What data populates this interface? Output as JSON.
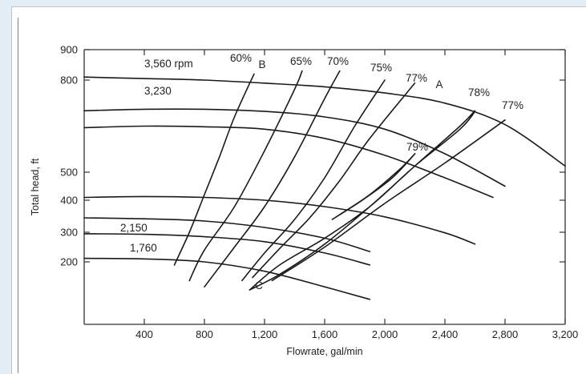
{
  "chart_data": {
    "type": "line",
    "xlabel": "Flowrate, gal/min",
    "ylabel": "Total head, ft",
    "xlim": [
      0,
      3200
    ],
    "ylim": [
      100,
      900
    ],
    "x_ticks": [
      400,
      800,
      1200,
      1600,
      2000,
      2400,
      2800,
      3200
    ],
    "x_tick_labels": [
      "400",
      "800",
      "1,200",
      "1,600",
      "2,000",
      "2,400",
      "2,800",
      "3,200"
    ],
    "y_ticks": [
      200,
      300,
      400,
      500,
      800,
      900
    ],
    "y_tick_labels": [
      "200",
      "300",
      "400",
      "500",
      "800",
      "900"
    ],
    "grid": false,
    "series": [
      {
        "name": "3,560 rpm",
        "group": "speed",
        "x": [
          0,
          400,
          800,
          1200,
          1600,
          2000,
          2400,
          2800,
          3200
        ],
        "y": [
          810,
          805,
          800,
          790,
          778,
          758,
          725,
          655,
          520
        ]
      },
      {
        "name": "3,230",
        "group": "speed",
        "x": [
          0,
          400,
          800,
          1200,
          1600,
          2000,
          2400,
          2800
        ],
        "y": [
          700,
          705,
          705,
          698,
          680,
          640,
          560,
          450
        ]
      },
      {
        "name": "",
        "group": "speed",
        "x": [
          0,
          400,
          800,
          1200,
          1600,
          2000,
          2400,
          2720
        ],
        "y": [
          645,
          650,
          648,
          640,
          610,
          555,
          480,
          410
        ]
      },
      {
        "name": "",
        "group": "speed",
        "x": [
          0,
          400,
          800,
          1200,
          1600,
          2000,
          2400,
          2600
        ],
        "y": [
          410,
          413,
          410,
          400,
          380,
          348,
          298,
          260
        ]
      },
      {
        "name": "2,150",
        "group": "speed",
        "x": [
          0,
          400,
          800,
          1200,
          1600,
          1900
        ],
        "y": [
          345,
          342,
          335,
          315,
          280,
          235
        ]
      },
      {
        "name": "1,760",
        "group": "speed",
        "x": [
          0,
          400,
          800,
          1200,
          1600,
          1900
        ],
        "y": [
          295,
          293,
          285,
          268,
          230,
          195
        ]
      },
      {
        "name": "",
        "group": "speed",
        "x": [
          0,
          400,
          800,
          1200,
          1600,
          1900
        ],
        "y": [
          212,
          210,
          200,
          185,
          160,
          140
        ]
      },
      {
        "name": "60%",
        "group": "efficiency",
        "x": [
          600,
          700,
          800,
          900,
          1000,
          1130
        ],
        "y": [
          195,
          300,
          420,
          550,
          680,
          820
        ]
      },
      {
        "name": "65%",
        "group": "efficiency",
        "x": [
          700,
          800,
          1000,
          1200,
          1400,
          1450
        ],
        "y": [
          170,
          240,
          380,
          570,
          770,
          830
        ]
      },
      {
        "name": "70%",
        "group": "efficiency",
        "x": [
          800,
          1000,
          1200,
          1400,
          1600,
          1700
        ],
        "y": [
          160,
          250,
          380,
          550,
          740,
          830
        ]
      },
      {
        "name": "75%",
        "group": "efficiency",
        "x": [
          1050,
          1200,
          1400,
          1600,
          1800,
          2000
        ],
        "y": [
          170,
          230,
          340,
          480,
          650,
          800
        ]
      },
      {
        "name": "77%",
        "group": "efficiency",
        "x": [
          1120,
          1300,
          1500,
          1700,
          1900,
          2200
        ],
        "y": [
          175,
          245,
          345,
          470,
          610,
          790
        ]
      },
      {
        "name": "78%",
        "group": "efficiency",
        "x": [
          1100,
          1300,
          1600,
          1900,
          2200,
          2500,
          2600,
          2500,
          2200,
          1900,
          1600,
          1300,
          1100
        ],
        "y": [
          155,
          195,
          280,
          380,
          520,
          640,
          700,
          650,
          520,
          380,
          260,
          180,
          155
        ]
      },
      {
        "name": "79%",
        "group": "efficiency",
        "x": [
          1650,
          1850,
          2050,
          2200,
          2100,
          1900,
          1700,
          1650
        ],
        "y": [
          340,
          400,
          480,
          560,
          510,
          420,
          355,
          340
        ]
      },
      {
        "name": "77%",
        "group": "efficiency",
        "x": [
          1250,
          1600,
          2000,
          2400,
          2800
        ],
        "y": [
          170,
          250,
          390,
          530,
          670
        ]
      }
    ],
    "annotations": [
      {
        "text": "A",
        "x": 2300,
        "y": 815
      },
      {
        "text": "B",
        "x": 1130,
        "y": 860
      },
      {
        "text": "C",
        "x": 1150,
        "y": 150
      }
    ]
  }
}
